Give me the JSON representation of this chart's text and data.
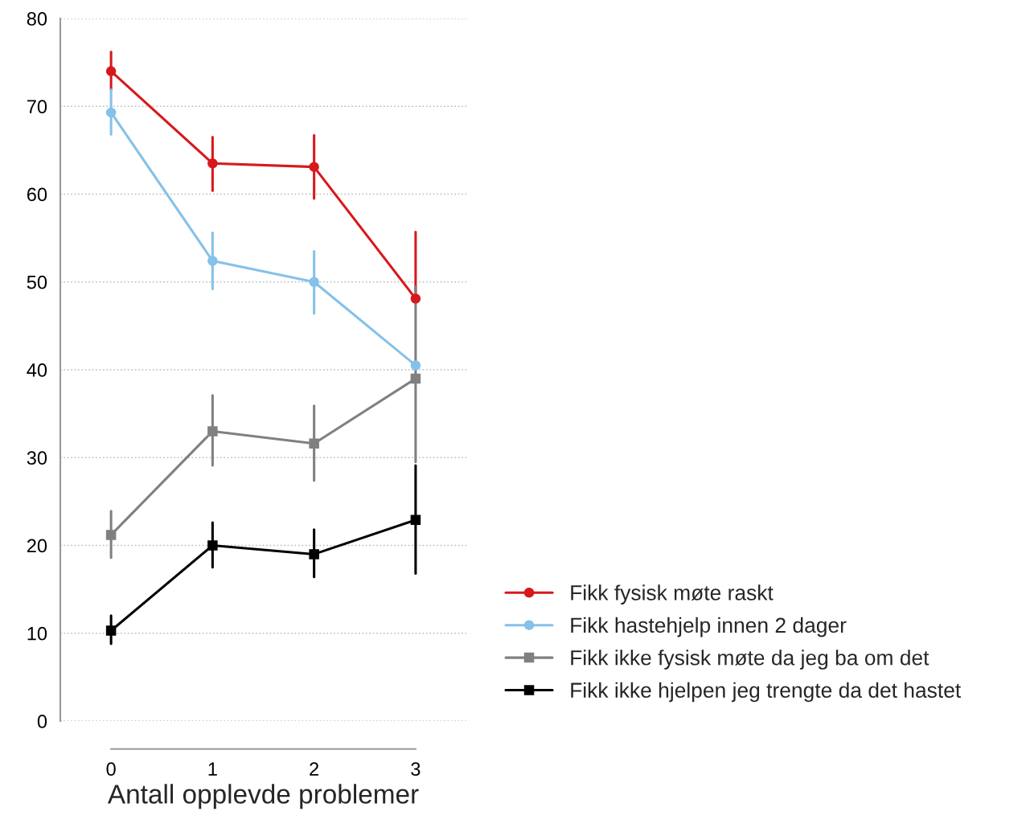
{
  "chart_data": {
    "type": "line",
    "xlabel": "Antall opplevde problemer",
    "categories": [
      "0",
      "1",
      "2",
      "3"
    ],
    "ylim": [
      0,
      80
    ],
    "yticks": [
      0,
      10,
      20,
      30,
      40,
      50,
      60,
      70,
      80
    ],
    "grid": "y",
    "legend": "right",
    "line_style": "solid",
    "series": [
      {
        "name": "Fikk fysisk møte raskt",
        "color": "#d7191c",
        "marker": "circle",
        "values": [
          74.0,
          63.5,
          63.1,
          48.1
        ],
        "errors": [
          [
            71.9,
            76.2
          ],
          [
            60.4,
            66.5
          ],
          [
            59.5,
            66.7
          ],
          [
            48.1,
            55.7
          ]
        ]
      },
      {
        "name": "Fikk hastehjelp innen 2 dager",
        "color": "#85c1e9",
        "marker": "circle",
        "values": [
          69.3,
          52.4,
          50.0,
          40.5
        ],
        "errors": [
          [
            66.8,
            71.9
          ],
          [
            49.2,
            55.6
          ],
          [
            46.4,
            53.5
          ],
          null
        ]
      },
      {
        "name": "Fikk ikke fysisk møte da jeg ba om det",
        "color": "#808080",
        "marker": "square",
        "values": [
          21.2,
          33.0,
          31.6,
          39.0
        ],
        "errors": [
          [
            18.6,
            23.9
          ],
          [
            29.1,
            37.1
          ],
          [
            27.4,
            35.9
          ],
          [
            29.5,
            49.5
          ]
        ]
      },
      {
        "name": "Fikk ikke hjelpen jeg trengte da det hastet",
        "color": "#000000",
        "marker": "square",
        "values": [
          10.3,
          20.0,
          19.0,
          22.9
        ],
        "errors": [
          [
            8.8,
            12.0
          ],
          [
            17.5,
            22.6
          ],
          [
            16.4,
            21.8
          ],
          [
            16.8,
            29.1
          ]
        ]
      }
    ]
  }
}
